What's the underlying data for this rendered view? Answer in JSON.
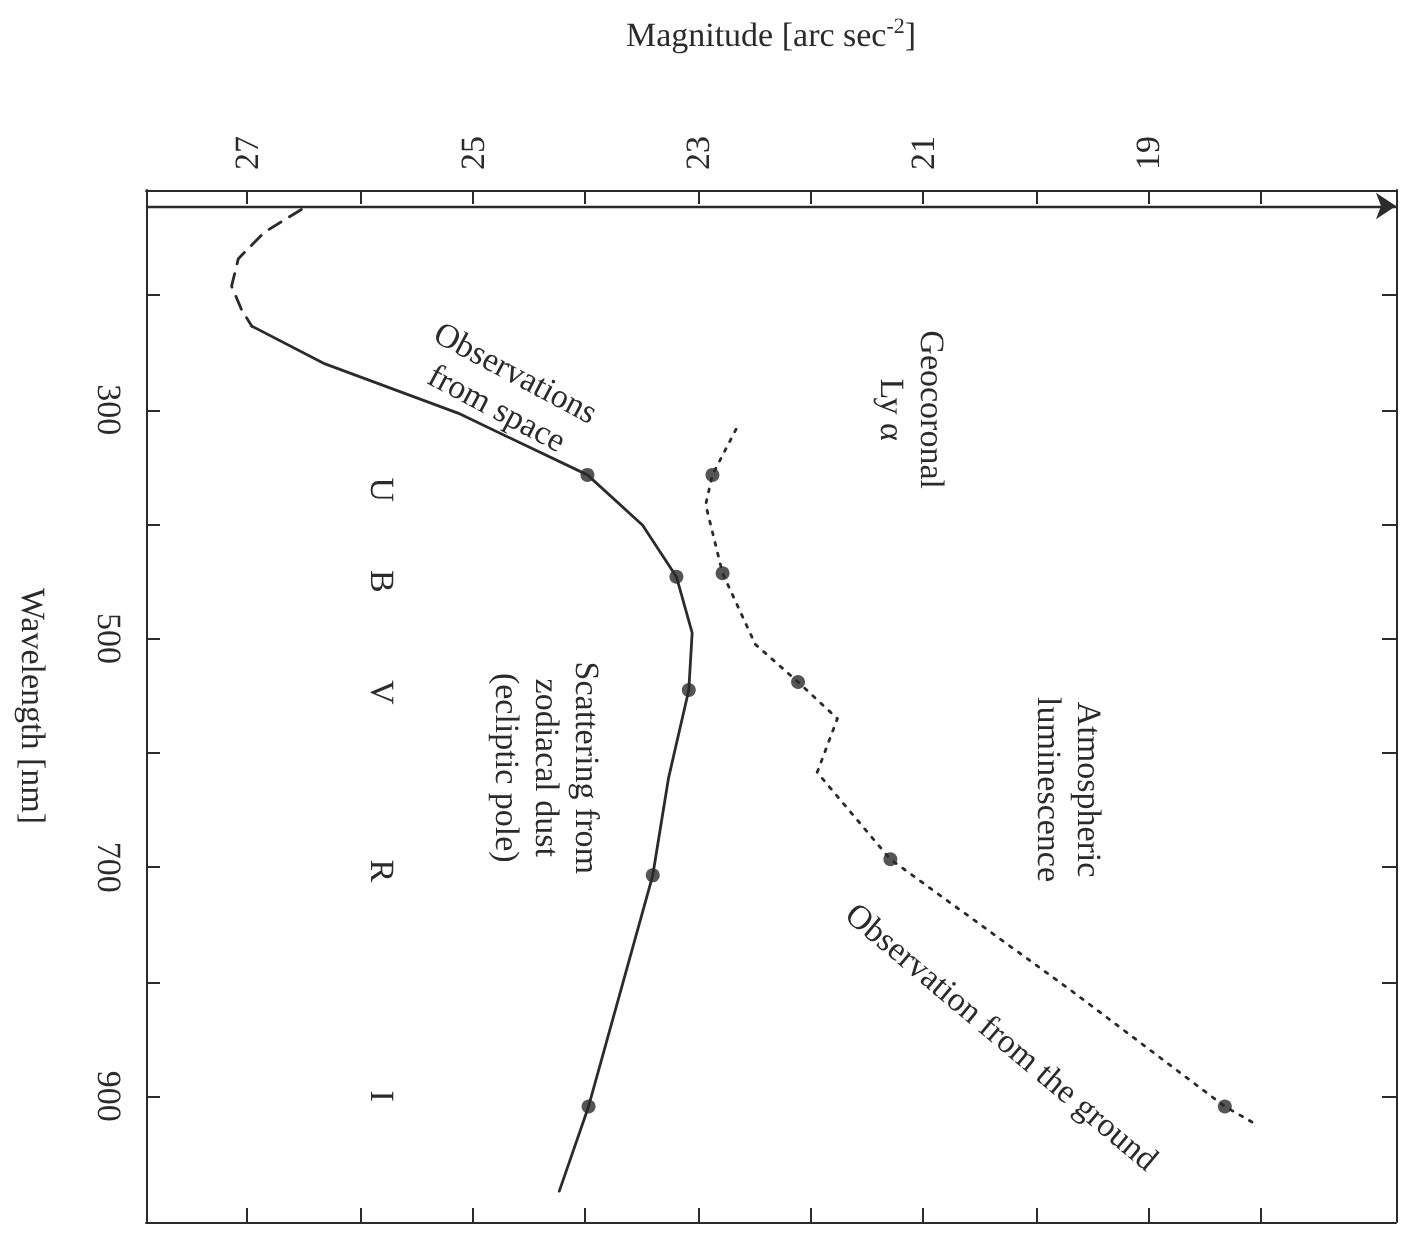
{
  "chart_data": {
    "type": "line",
    "xlabel": "Magnitude [arc sec$^{-2}$]",
    "ylabel": "Wavelength [nm]",
    "xlim": [
      27.9,
      16.8
    ],
    "xticks": [
      27,
      {
        "value": 26,
        "label": null
      },
      25,
      {
        "value": 24,
        "label": null
      },
      23,
      {
        "value": 22,
        "label": null
      },
      21,
      {
        "value": 20,
        "label": null
      },
      19,
      {
        "value": 18,
        "label": null
      }
    ],
    "ylim": [
      1010,
      108
    ],
    "yticks": [
      {
        "value": 200,
        "label": null
      },
      300,
      {
        "value": 400,
        "label": null
      },
      500,
      {
        "value": 600,
        "label": null
      },
      700,
      {
        "value": 800,
        "label": null
      },
      900
    ],
    "grid": false,
    "series": [
      {
        "line_style": "dashed",
        "marker": "none",
        "color": "#2b2b2b",
        "x": [
          26.52,
          26.85,
          27.08,
          27.14,
          27.05,
          26.96
        ],
        "values": [
          125,
          145,
          168,
          192,
          213,
          227
        ]
      },
      {
        "line_style": "solid",
        "marker": "none",
        "color": "#2b2b2b",
        "x": [
          26.96,
          26.31,
          25.13,
          23.98,
          23.49,
          23.19,
          23.05,
          23.08,
          23.26,
          23.4,
          23.97,
          24.23
        ],
        "values": [
          227,
          260,
          303,
          357,
          401,
          446,
          495,
          545,
          622,
          707,
          909,
          983
        ]
      },
      {
        "type": "scatter",
        "marker": "circle",
        "color": "#2b2b2b",
        "x": [
          23.98,
          23.19,
          23.08,
          23.4,
          23.97
        ],
        "values": [
          357,
          446,
          545,
          707,
          909
        ]
      },
      {
        "line_style": "dotted",
        "marker": "none",
        "color": "#2b2b2b",
        "x": [
          22.66,
          22.87,
          22.93,
          22.78,
          22.49,
          22.11,
          21.76,
          21.94,
          21.29,
          19.68,
          18.32,
          18.02
        ],
        "values": [
          317,
          357,
          383,
          443,
          505,
          538,
          570,
          617,
          693,
          808,
          909,
          926
        ]
      },
      {
        "type": "scatter",
        "marker": "circle",
        "color": "#2b2b2b",
        "x": [
          22.87,
          22.78,
          22.11,
          21.29,
          18.32
        ],
        "values": [
          357,
          443,
          538,
          693,
          909
        ]
      }
    ],
    "ref_lines": [
      {
        "axis": "y",
        "value": 122,
        "color": "#2b2b2b",
        "line_style": "solid"
      }
    ],
    "annotations": [
      "Observations\nfrom space",
      "Geocoronal\nLy α",
      "Atmospheric\nluminescence",
      "Scattering from\nzodiacal dust\n(ecliptic pole)",
      "Observation from the ground",
      "U",
      "B",
      "V",
      "R",
      "I"
    ]
  }
}
